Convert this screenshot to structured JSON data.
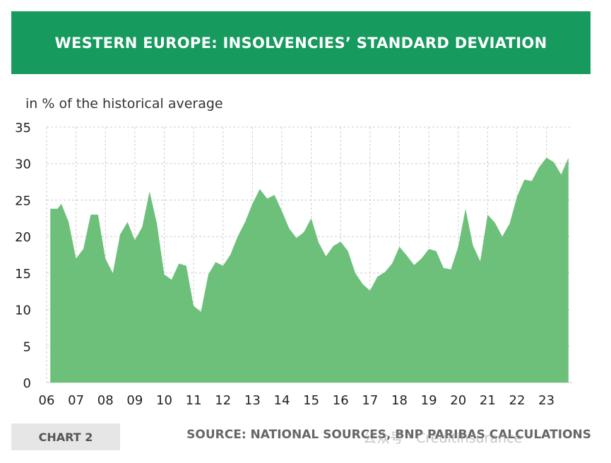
{
  "banner": {
    "title": "WESTERN EUROPE: INSOLVENCIES’ STANDARD DEVIATION"
  },
  "footer": {
    "chart_tag": "CHART 2",
    "source": "SOURCE: NATIONAL SOURCES, BNP PARIBAS CALCULATIONS",
    "watermark": "公众号 · Creditinsurance"
  },
  "colors": {
    "banner": "#169a5e",
    "area_fill": "#6dc07a",
    "grid": "#cccccc"
  },
  "chart_data": {
    "type": "area",
    "title": "WESTERN EUROPE: INSOLVENCIES’ STANDARD DEVIATION",
    "ylabel": "in % of the historical average",
    "xlabel": "",
    "ylim": [
      0,
      35
    ],
    "xlim": [
      2006,
      2023.875
    ],
    "yticks": [
      0,
      5,
      10,
      15,
      20,
      25,
      30,
      35
    ],
    "xticks": [
      {
        "value": 2006,
        "label": "06"
      },
      {
        "value": 2007,
        "label": "07"
      },
      {
        "value": 2008,
        "label": "08"
      },
      {
        "value": 2009,
        "label": "09"
      },
      {
        "value": 2010,
        "label": "10"
      },
      {
        "value": 2011,
        "label": "11"
      },
      {
        "value": 2012,
        "label": "12"
      },
      {
        "value": 2013,
        "label": "13"
      },
      {
        "value": 2014,
        "label": "14"
      },
      {
        "value": 2015,
        "label": "15"
      },
      {
        "value": 2016,
        "label": "16"
      },
      {
        "value": 2017,
        "label": "17"
      },
      {
        "value": 2018,
        "label": "18"
      },
      {
        "value": 2019,
        "label": "19"
      },
      {
        "value": 2020,
        "label": "20"
      },
      {
        "value": 2021,
        "label": "21"
      },
      {
        "value": 2022,
        "label": "22"
      },
      {
        "value": 2023,
        "label": "23"
      }
    ],
    "grid": true,
    "legend": "none",
    "x": [
      2006.125,
      2006.375,
      2006.5,
      2006.75,
      2007.0,
      2007.25,
      2007.5,
      2007.75,
      2008.0,
      2008.25,
      2008.5,
      2008.75,
      2009.0,
      2009.25,
      2009.5,
      2009.75,
      2010.0,
      2010.25,
      2010.5,
      2010.75,
      2011.0,
      2011.25,
      2011.5,
      2011.75,
      2012.0,
      2012.25,
      2012.5,
      2012.75,
      2013.0,
      2013.25,
      2013.5,
      2013.75,
      2014.0,
      2014.25,
      2014.5,
      2014.75,
      2015.0,
      2015.25,
      2015.5,
      2015.75,
      2016.0,
      2016.25,
      2016.5,
      2016.75,
      2017.0,
      2017.25,
      2017.5,
      2017.75,
      2018.0,
      2018.25,
      2018.5,
      2018.75,
      2019.0,
      2019.25,
      2019.5,
      2019.75,
      2020.0,
      2020.25,
      2020.5,
      2020.75,
      2021.0,
      2021.25,
      2021.5,
      2021.75,
      2022.0,
      2022.25,
      2022.5,
      2022.75,
      2023.0,
      2023.25,
      2023.5,
      2023.75
    ],
    "values": [
      23.8,
      23.8,
      24.5,
      22.0,
      17.0,
      18.3,
      23.0,
      23.0,
      17.0,
      15.0,
      20.3,
      22.0,
      19.5,
      21.3,
      26.2,
      21.8,
      14.8,
      14.1,
      16.3,
      16.0,
      10.5,
      9.7,
      14.8,
      16.5,
      16.0,
      17.5,
      20.0,
      22.0,
      24.5,
      26.5,
      25.2,
      25.7,
      23.5,
      21.1,
      19.8,
      20.6,
      22.5,
      19.2,
      17.3,
      18.7,
      19.3,
      18.0,
      15.0,
      13.5,
      12.6,
      14.5,
      15.1,
      16.3,
      18.6,
      17.4,
      16.1,
      17.0,
      18.3,
      18.0,
      15.7,
      15.5,
      18.6,
      23.8,
      18.8,
      16.6,
      23.0,
      21.9,
      20.0,
      21.8,
      25.5,
      27.8,
      27.6,
      29.5,
      30.8,
      30.2,
      28.5,
      30.8
    ]
  }
}
